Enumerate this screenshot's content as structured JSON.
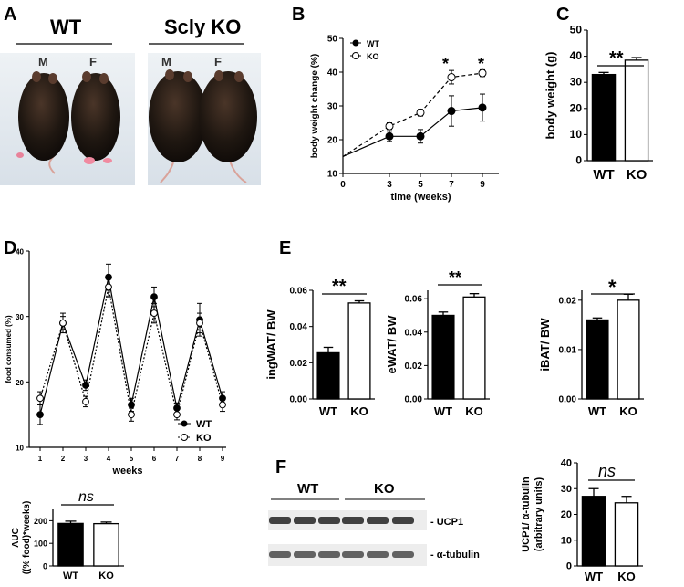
{
  "panels": {
    "A": {
      "label": "A",
      "groups": [
        "WT",
        "Scly KO"
      ],
      "sexes": [
        "M",
        "F",
        "M",
        "F"
      ]
    },
    "B": {
      "label": "B",
      "legend_wt": "WT",
      "legend_ko": "KO",
      "sig": [
        "*",
        "*"
      ]
    },
    "C": {
      "label": "C",
      "sig": "**"
    },
    "D": {
      "label": "D",
      "legend_wt": "WT",
      "legend_ko": "KO",
      "auc_sig": "ns"
    },
    "E": {
      "label": "E",
      "sig": [
        "**",
        "**",
        "*"
      ]
    },
    "F": {
      "label": "F",
      "blot_groups": [
        "WT",
        "KO"
      ],
      "bands": [
        "- UCP1",
        "- α-tubulin"
      ],
      "sig": "ns"
    }
  },
  "colors": {
    "wt": "#000000",
    "ko": "#ffffff",
    "photo_bg": "#dfe6ec"
  },
  "chart_data": [
    {
      "id": "B",
      "type": "line",
      "xlabel": "time (weeks)",
      "ylabel": "body weight change (%)",
      "xlim": [
        0,
        10
      ],
      "ylim": [
        10,
        50
      ],
      "xticks": [
        0,
        3,
        5,
        7,
        9
      ],
      "yticks": [
        10,
        20,
        30,
        40,
        50
      ],
      "x": [
        0,
        3,
        5,
        7,
        9
      ],
      "series": [
        {
          "name": "WT",
          "values": [
            15,
            21,
            21,
            28.5,
            29.5
          ],
          "err": [
            0,
            1.5,
            2,
            4.5,
            4
          ]
        },
        {
          "name": "KO",
          "values": [
            15,
            24,
            28,
            38.5,
            39.7
          ],
          "err": [
            0,
            1,
            1,
            2,
            1
          ]
        }
      ]
    },
    {
      "id": "C",
      "type": "bar",
      "categories": [
        "WT",
        "KO"
      ],
      "values": [
        33,
        38.5
      ],
      "err": [
        0.8,
        1
      ],
      "ylabel": "body weight (g)",
      "ylim": [
        0,
        50
      ],
      "yticks": [
        0,
        10,
        20,
        30,
        40,
        50
      ]
    },
    {
      "id": "D",
      "type": "line",
      "xlabel": "weeks",
      "ylabel": "food consumed (%)",
      "ylim": [
        10,
        40
      ],
      "yticks": [
        10,
        20,
        30,
        40
      ],
      "x": [
        1,
        2,
        3,
        4,
        5,
        6,
        7,
        8,
        9
      ],
      "series": [
        {
          "name": "WT",
          "values": [
            15,
            29,
            19.5,
            36,
            16.5,
            33,
            16,
            29.5,
            17.5
          ],
          "err": [
            1.5,
            1.5,
            0.8,
            2,
            1,
            1.5,
            0.8,
            2.5,
            1
          ]
        },
        {
          "name": "KO",
          "values": [
            17.5,
            29,
            17,
            34.5,
            15,
            30.5,
            15,
            29,
            16.5
          ],
          "err": [
            1,
            1,
            0.8,
            1.5,
            1,
            1.5,
            0.8,
            1.5,
            1
          ]
        }
      ]
    },
    {
      "id": "D-AUC",
      "type": "bar",
      "categories": [
        "WT",
        "KO"
      ],
      "values": [
        188,
        187
      ],
      "err": [
        10,
        7
      ],
      "ylabel": "AUC\n((% food)*weeks)",
      "ylim": [
        0,
        250
      ],
      "yticks": [
        0,
        100,
        200
      ]
    },
    {
      "id": "E1",
      "type": "bar",
      "categories": [
        "WT",
        "KO"
      ],
      "values": [
        0.0255,
        0.053
      ],
      "err": [
        0.003,
        0.0012
      ],
      "ylabel": "ingWAT/ BW",
      "ylim": [
        0,
        0.06
      ],
      "yticks": [
        0.0,
        0.02,
        0.04,
        0.06
      ]
    },
    {
      "id": "E2",
      "type": "bar",
      "categories": [
        "WT",
        "KO"
      ],
      "values": [
        0.05,
        0.061
      ],
      "err": [
        0.002,
        0.002
      ],
      "ylabel": "eWAT/ BW",
      "ylim": [
        0,
        0.065
      ],
      "yticks": [
        0.0,
        0.02,
        0.04,
        0.06
      ]
    },
    {
      "id": "E3",
      "type": "bar",
      "categories": [
        "WT",
        "KO"
      ],
      "values": [
        0.016,
        0.02
      ],
      "err": [
        0.0004,
        0.0012
      ],
      "ylabel": "iBAT/ BW",
      "ylim": [
        0,
        0.022
      ],
      "yticks": [
        0.0,
        0.01,
        0.02
      ]
    },
    {
      "id": "F",
      "type": "bar",
      "categories": [
        "WT",
        "KO"
      ],
      "values": [
        27,
        24.5
      ],
      "err": [
        3,
        2.5
      ],
      "ylabel": "UCP1/ α-tubulin\n(arbitrary units)",
      "ylim": [
        0,
        40
      ],
      "yticks": [
        0,
        10,
        20,
        30,
        40
      ]
    }
  ]
}
